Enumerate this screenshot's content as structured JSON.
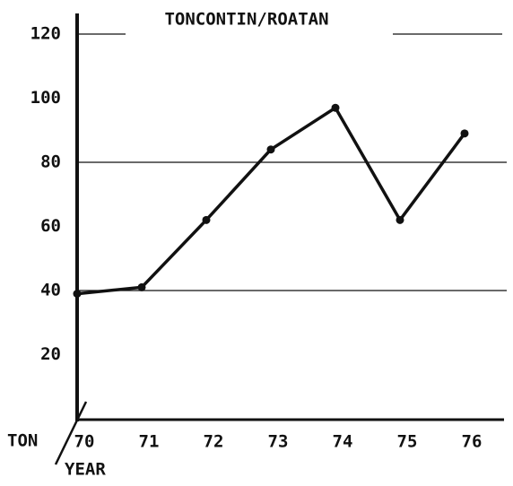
{
  "chart_data": {
    "type": "line",
    "title": "TONCONTIN/ROATAN",
    "y_label": "TON",
    "x_label": "YEAR",
    "categories": [
      "70",
      "71",
      "72",
      "73",
      "74",
      "75",
      "76"
    ],
    "series": [
      {
        "name": null,
        "color": "#111111",
        "values": [
          39,
          41,
          62,
          84,
          97,
          62,
          89
        ]
      }
    ],
    "ylim": [
      0,
      120
    ],
    "yticks": [
      20,
      40,
      60,
      80,
      100,
      120
    ],
    "grid": true
  }
}
